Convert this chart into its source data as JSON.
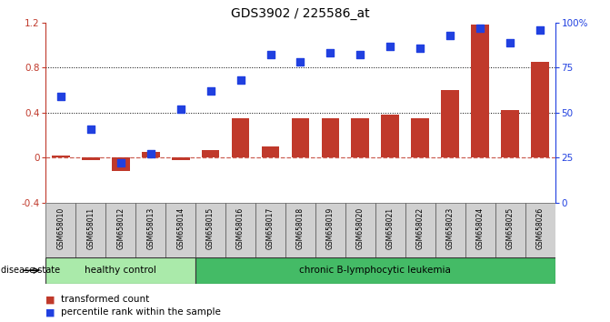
{
  "title": "GDS3902 / 225586_at",
  "samples": [
    "GSM658010",
    "GSM658011",
    "GSM658012",
    "GSM658013",
    "GSM658014",
    "GSM658015",
    "GSM658016",
    "GSM658017",
    "GSM658018",
    "GSM658019",
    "GSM658020",
    "GSM658021",
    "GSM658022",
    "GSM658023",
    "GSM658024",
    "GSM658025",
    "GSM658026"
  ],
  "transformed_count": [
    0.02,
    -0.02,
    -0.12,
    0.05,
    -0.02,
    0.07,
    0.35,
    0.1,
    0.35,
    0.35,
    0.35,
    0.38,
    0.35,
    0.6,
    1.18,
    0.42,
    0.85
  ],
  "percentile_rank": [
    59,
    41,
    22,
    27,
    52,
    62,
    68,
    82,
    78,
    83,
    82,
    87,
    86,
    93,
    97,
    89,
    96
  ],
  "healthy_control_count": 5,
  "leukemia_count": 12,
  "bar_color": "#c0392b",
  "dot_color": "#2040e0",
  "healthy_bg": "#aaeaaa",
  "leukemia_bg": "#44bb66",
  "sample_bg": "#d0d0d0",
  "ylim_left": [
    -0.4,
    1.2
  ],
  "ylim_right": [
    0,
    100
  ],
  "yticks_left": [
    -0.4,
    0.0,
    0.4,
    0.8,
    1.2
  ],
  "ytick_labels_left": [
    "-0.4",
    "0",
    "0.4",
    "0.8",
    "1.2"
  ],
  "yticks_right": [
    0,
    25,
    50,
    75,
    100
  ],
  "ytick_labels_right": [
    "0",
    "25",
    "50",
    "75",
    "100%"
  ],
  "legend_labels": [
    "transformed count",
    "percentile rank within the sample"
  ],
  "disease_state_label": "disease state",
  "healthy_label": "healthy control",
  "leukemia_label": "chronic B-lymphocytic leukemia"
}
